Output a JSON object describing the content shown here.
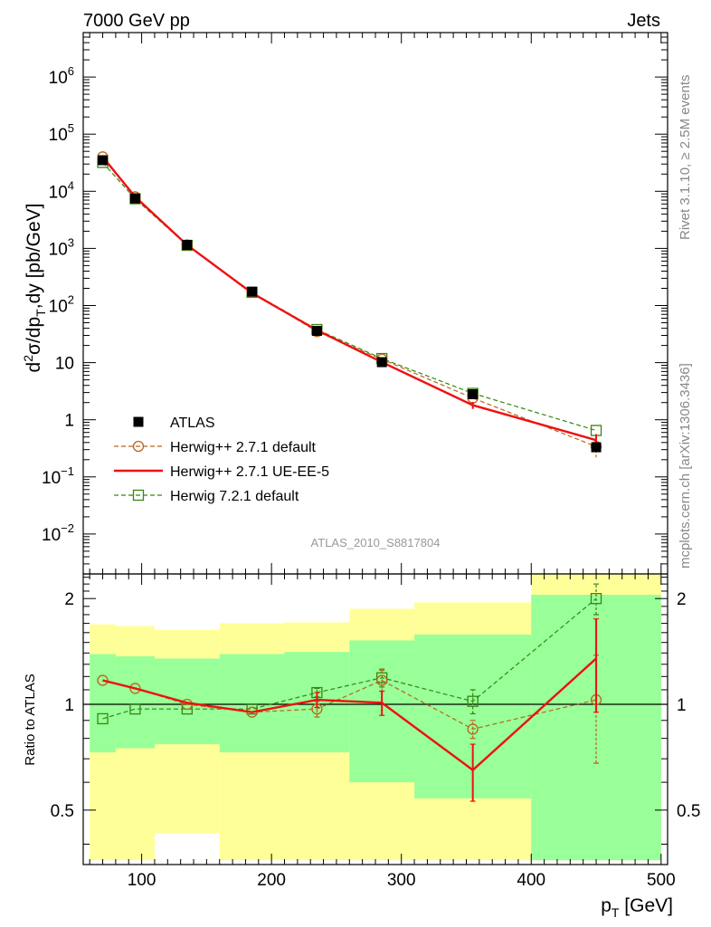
{
  "header": {
    "left": "7000 GeV pp",
    "right": "Jets"
  },
  "side": {
    "rivet": "Rivet 3.1.10, ≥ 2.5M events",
    "mcplots": "mcplots.cern.ch [arXiv:1306.3436]"
  },
  "analysis_label": "ATLAS_2010_S8817804",
  "colors": {
    "atlas": "#000000",
    "herwigpp_default": "#b8651b",
    "herwigpp_ueee5": "#ee1111",
    "herwig721": "#338811",
    "band_inner": "#99ff99",
    "band_outer": "#ffff99"
  },
  "chart_data": [
    {
      "type": "line",
      "panel": "main",
      "ylabel": "d²σ/dp_T,dy [pb/GeV]",
      "yscale": "log",
      "xlim": [
        55,
        505
      ],
      "ylim": [
        0.002,
        6000000
      ],
      "x_ticks": [
        100,
        200,
        300,
        400,
        500
      ],
      "y_ticks": [
        {
          "value": 0.01,
          "base": "10",
          "exp": "−2"
        },
        {
          "value": 0.1,
          "base": "10",
          "exp": "−1"
        },
        {
          "value": 1,
          "base": "1",
          "exp": ""
        },
        {
          "value": 10,
          "base": "10",
          "exp": ""
        },
        {
          "value": 100,
          "base": "10",
          "exp": "2"
        },
        {
          "value": 1000,
          "base": "10",
          "exp": "3"
        },
        {
          "value": 10000,
          "base": "10",
          "exp": "4"
        },
        {
          "value": 100000,
          "base": "10",
          "exp": "5"
        },
        {
          "value": 1000000,
          "base": "10",
          "exp": "6"
        }
      ],
      "legend_position": "bottom-left",
      "series": [
        {
          "key": "atlas",
          "name": "ATLAS",
          "style": "marker-square-filled",
          "x": [
            70,
            95,
            135,
            185,
            235,
            285,
            355,
            450
          ],
          "y": [
            35000,
            7500,
            1150,
            175,
            36,
            10.2,
            2.8,
            0.33
          ]
        },
        {
          "key": "herwigpp_default",
          "name": "Herwig++ 2.7.1 default",
          "style": "dashed-circle-open",
          "x": [
            70,
            95,
            135,
            185,
            235,
            285,
            355,
            450
          ],
          "y": [
            40000,
            8000,
            1150,
            170,
            35,
            11.5,
            2.4,
            0.34
          ],
          "yerr": [
            0,
            0,
            0,
            0,
            0,
            0,
            0,
            0.12
          ]
        },
        {
          "key": "herwigpp_ueee5",
          "name": "Herwig++ 2.7.1 UE-EE-5",
          "style": "solid",
          "x": [
            70,
            95,
            135,
            185,
            235,
            285,
            355,
            450
          ],
          "y": [
            40000,
            8000,
            1150,
            165,
            37,
            10.2,
            1.8,
            0.44
          ],
          "yerr": [
            0,
            0,
            0,
            0,
            0,
            0,
            0.25,
            0.12
          ]
        },
        {
          "key": "herwig721",
          "name": "Herwig 7.2.1 default",
          "style": "dashed-square-open",
          "x": [
            70,
            95,
            135,
            185,
            235,
            285,
            355,
            450
          ],
          "y": [
            32000,
            7400,
            1130,
            170,
            38,
            11.8,
            2.9,
            0.65
          ]
        }
      ]
    },
    {
      "type": "line",
      "panel": "ratio",
      "xlabel": "p_T [GeV]",
      "ylabel": "Ratio to ATLAS",
      "yscale": "log",
      "xlim": [
        55,
        505
      ],
      "ylim": [
        0.35,
        2.35
      ],
      "x_ticks": [
        100,
        200,
        300,
        400,
        500
      ],
      "y_ticks": [
        0.5,
        1,
        2
      ],
      "y_tick_labels": [
        "0.5",
        "1",
        "2"
      ],
      "reference_line": 1,
      "bands": {
        "bins": [
          60,
          80,
          110,
          160,
          210,
          260,
          310,
          400,
          500
        ],
        "outer_low": [
          0.36,
          0.36,
          0.43,
          0.36,
          0.36,
          0.36,
          0.36,
          0.36
        ],
        "outer_high": [
          1.69,
          1.67,
          1.63,
          1.7,
          1.71,
          1.87,
          1.95,
          2.37
        ],
        "inner_low": [
          0.73,
          0.75,
          0.77,
          0.73,
          0.73,
          0.6,
          0.54,
          0.36
        ],
        "inner_high": [
          1.39,
          1.37,
          1.35,
          1.39,
          1.41,
          1.52,
          1.58,
          2.05
        ]
      },
      "series": [
        {
          "key": "herwigpp_default",
          "name": "Herwig++ 2.7.1 default",
          "x": [
            70,
            95,
            135,
            185,
            235,
            285,
            355,
            450
          ],
          "y": [
            1.17,
            1.11,
            1.0,
            0.95,
            0.97,
            1.17,
            0.85,
            1.03
          ],
          "yerr": [
            0,
            0,
            0,
            0,
            0.05,
            0.08,
            0.05,
            0.35
          ]
        },
        {
          "key": "herwigpp_ueee5",
          "name": "Herwig++ 2.7.1 UE-EE-5",
          "x": [
            70,
            95,
            135,
            185,
            235,
            285,
            355,
            450
          ],
          "y": [
            1.17,
            1.11,
            1.01,
            0.95,
            1.03,
            1.01,
            0.65,
            1.35
          ],
          "yerr": [
            0,
            0,
            0,
            0,
            0.05,
            0.08,
            0.12,
            0.4
          ]
        },
        {
          "key": "herwig721",
          "name": "Herwig 7.2.1 default",
          "x": [
            70,
            95,
            135,
            185,
            235,
            285,
            355,
            450
          ],
          "y": [
            0.91,
            0.97,
            0.97,
            0.97,
            1.08,
            1.19,
            1.02,
            2.0
          ],
          "yerr": [
            0,
            0,
            0,
            0,
            0.03,
            0.07,
            0.08,
            0.2
          ]
        }
      ]
    }
  ]
}
